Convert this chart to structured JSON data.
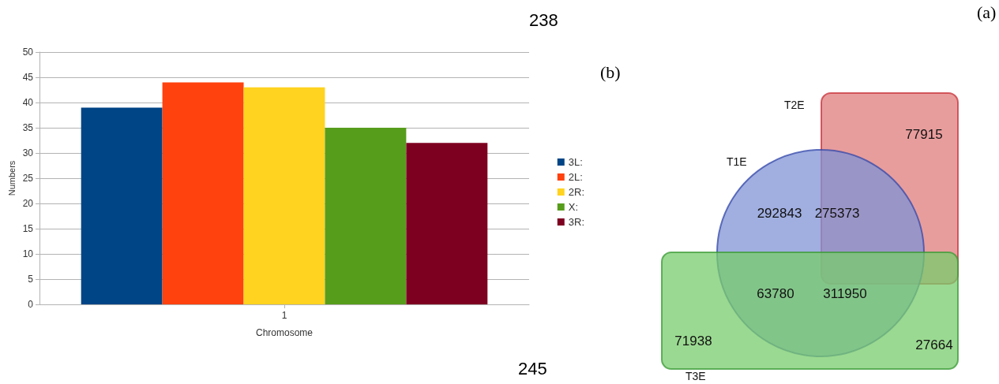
{
  "chart_data": [
    {
      "type": "bar",
      "xlabel": "Chromosome",
      "ylabel": "Numbers",
      "categories": [
        "1"
      ],
      "series": [
        {
          "name": "3L:",
          "color": "#004586",
          "values": [
            39
          ]
        },
        {
          "name": "2L:",
          "color": "#ff420e",
          "values": [
            44
          ]
        },
        {
          "name": "2R:",
          "color": "#ffd320",
          "values": [
            43
          ]
        },
        {
          "name": "X:",
          "color": "#579d1c",
          "values": [
            35
          ]
        },
        {
          "name": "3R:",
          "color": "#7e0021",
          "values": [
            32
          ]
        }
      ],
      "ylim": [
        0,
        50
      ],
      "yticks": [
        0,
        5,
        10,
        15,
        20,
        25,
        30,
        35,
        40,
        45,
        50
      ],
      "grid": "y",
      "legend": "right",
      "annotations": [
        "238",
        "245",
        "(a)"
      ]
    },
    {
      "type": "other",
      "categories": [
        "T1E",
        "T2E",
        "T3E"
      ],
      "colors": [
        "#8093d6",
        "#e07c7c",
        "#78cc6c"
      ],
      "annotations": [
        "(b)",
        "292843",
        "275373",
        "77915",
        "63780",
        "311950",
        "71938",
        "27664"
      ]
    }
  ]
}
